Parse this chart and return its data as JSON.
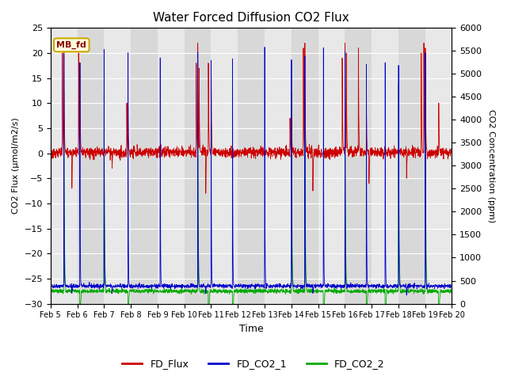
{
  "title": "Water Forced Diffusion CO2 Flux",
  "xlabel": "Time",
  "ylabel_left": "CO2 Flux (μmol/m2/s)",
  "ylabel_right": "CO2 Concentration (ppm)",
  "ylim_left": [
    -30,
    25
  ],
  "ylim_right": [
    0,
    6000
  ],
  "yticks_left": [
    -30,
    -25,
    -20,
    -15,
    -10,
    -5,
    0,
    5,
    10,
    15,
    20,
    25
  ],
  "yticks_right": [
    0,
    500,
    1000,
    1500,
    2000,
    2500,
    3000,
    3500,
    4000,
    4500,
    5000,
    5500,
    6000
  ],
  "xtick_labels": [
    "Feb 5",
    "Feb 6",
    "Feb 7",
    "Feb 8",
    "Feb 9",
    "Feb 10",
    "Feb 11",
    "Feb 12",
    "Feb 13",
    "Feb 14",
    "Feb 15",
    "Feb 16",
    "Feb 17",
    "Feb 18",
    "Feb 19",
    "Feb 20"
  ],
  "color_flux": "#cc0000",
  "color_co2_1": "#0000cc",
  "color_co2_2": "#00aa00",
  "legend_label_flux": "FD_Flux",
  "legend_label_co2_1": "FD_CO2_1",
  "legend_label_co2_2": "FD_CO2_2",
  "annotation_text": "MB_fd",
  "bg_color": "#d8d8d8",
  "band_color": "#e8e8e8",
  "grid_color": "#ffffff",
  "fig_bg": "#ffffff"
}
